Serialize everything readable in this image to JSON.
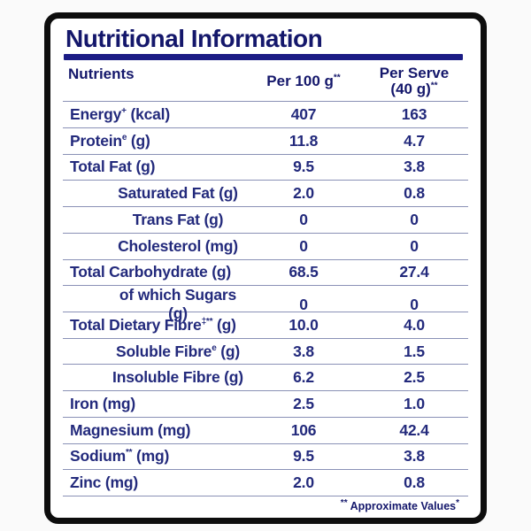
{
  "card": {
    "title": "Nutritional Information",
    "header": {
      "nutrients_label": "Nutrients",
      "per_100g_label": "Per 100 g",
      "per_100g_mark": "**",
      "per_serve_line1": "Per Serve",
      "per_serve_line2": "(40 g)",
      "per_serve_mark": "**"
    },
    "rows": [
      {
        "label": "Energy",
        "sup": "+",
        "unit": " (kcal)",
        "per_100g": "407",
        "per_serve": "163",
        "indent": false
      },
      {
        "label": "Protein",
        "sup": "e",
        "unit": " (g)",
        "per_100g": "11.8",
        "per_serve": "4.7",
        "indent": false
      },
      {
        "label": "Total Fat",
        "sup": "",
        "unit": " (g)",
        "per_100g": "9.5",
        "per_serve": "3.8",
        "indent": false
      },
      {
        "label": "Saturated Fat",
        "sup": "",
        "unit": " (g)",
        "per_100g": "2.0",
        "per_serve": "0.8",
        "indent": true
      },
      {
        "label": "Trans Fat",
        "sup": "",
        "unit": " (g)",
        "per_100g": "0",
        "per_serve": "0",
        "indent": true
      },
      {
        "label": "Cholesterol",
        "sup": "",
        "unit": " (mg)",
        "per_100g": "0",
        "per_serve": "0",
        "indent": true
      },
      {
        "label": "Total Carbohydrate",
        "sup": "",
        "unit": " (g)",
        "per_100g": "68.5",
        "per_serve": "27.4",
        "indent": false
      },
      {
        "label": "of which Sugars",
        "sup": "",
        "unit": " (g)",
        "per_100g": "0",
        "per_serve": "0",
        "indent": true
      },
      {
        "label": "Total Dietary Fibre",
        "sup": "‡**",
        "unit": " (g)",
        "per_100g": "10.0",
        "per_serve": "4.0",
        "indent": false
      },
      {
        "label": "Soluble Fibre",
        "sup": "e",
        "unit": " (g)",
        "per_100g": "3.8",
        "per_serve": "1.5",
        "indent": true
      },
      {
        "label": "Insoluble Fibre",
        "sup": "",
        "unit": " (g)",
        "per_100g": "6.2",
        "per_serve": "2.5",
        "indent": true
      },
      {
        "label": "Iron",
        "sup": "",
        "unit": " (mg)",
        "per_100g": "2.5",
        "per_serve": "1.0",
        "indent": false
      },
      {
        "label": "Magnesium",
        "sup": "",
        "unit": " (mg)",
        "per_100g": "106",
        "per_serve": "42.4",
        "indent": false
      },
      {
        "label": "Sodium",
        "sup": "**",
        "unit": " (mg)",
        "per_100g": "9.5",
        "per_serve": "3.8",
        "indent": false
      },
      {
        "label": "Zinc",
        "sup": "",
        "unit": " (mg)",
        "per_100g": "2.0",
        "per_serve": "0.8",
        "indent": false
      }
    ],
    "footnote": {
      "mark": "**",
      "text": " Approximate Values",
      "trailing_mark": "*"
    }
  },
  "colors": {
    "text_navy": "#232a7c",
    "title_navy": "#14176b",
    "underline": "#1b1c85",
    "divider": "#8a91b6",
    "border": "#0d0d0d",
    "card_bg": "#ffffff",
    "page_bg": "#fafafa"
  }
}
